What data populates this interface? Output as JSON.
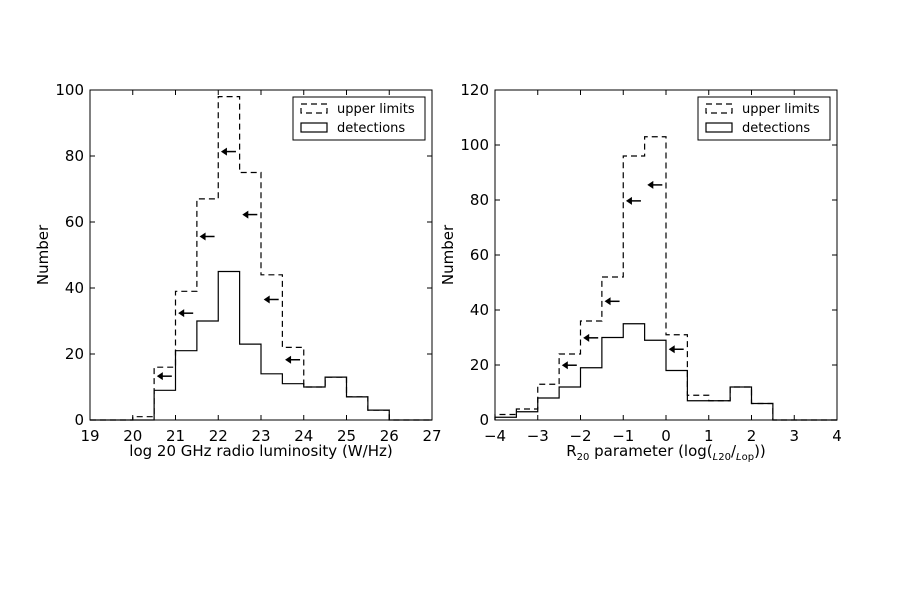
{
  "chart_data": [
    {
      "type": "histogram",
      "xlabel": "log 20 GHz radio luminosity (W/Hz)",
      "xlabel_parts": [],
      "ylabel": "Number",
      "xlim": [
        19,
        27
      ],
      "ylim": [
        0,
        100
      ],
      "xticks": [
        19,
        20,
        21,
        22,
        23,
        24,
        25,
        26,
        27
      ],
      "yticks": [
        0,
        20,
        40,
        60,
        80,
        100
      ],
      "grid": false,
      "legend_position": "top-right",
      "bins": [
        19.0,
        19.5,
        20.0,
        20.5,
        21.0,
        21.5,
        22.0,
        22.5,
        23.0,
        23.5,
        24.0,
        24.5,
        25.0,
        25.5,
        26.0,
        26.5,
        27.0
      ],
      "series": [
        {
          "name": "upper limits",
          "style": "dashed",
          "counts": [
            0,
            0,
            1,
            16,
            39,
            67,
            98,
            75,
            44,
            22,
            10,
            13,
            7,
            3,
            0,
            0
          ],
          "arrow_bins": [
            3,
            4,
            5,
            6,
            7,
            8,
            9
          ]
        },
        {
          "name": "detections",
          "style": "solid",
          "counts": [
            0,
            0,
            0,
            9,
            21,
            30,
            45,
            23,
            14,
            11,
            10,
            13,
            7,
            3,
            0,
            0
          ]
        }
      ]
    },
    {
      "type": "histogram",
      "xlabel": "",
      "xlabel_parts": [
        "R",
        "20",
        " parameter (log(",
        "L",
        "20",
        "/",
        "L",
        "op",
        "))"
      ],
      "ylabel": "Number",
      "xlim": [
        -4,
        4
      ],
      "ylim": [
        0,
        120
      ],
      "xticks": [
        -4,
        -3,
        -2,
        -1,
        0,
        1,
        2,
        3,
        4
      ],
      "xtick_labels": [
        "−4",
        "−3",
        "−2",
        "−1",
        "0",
        "1",
        "2",
        "3",
        "4"
      ],
      "yticks": [
        0,
        20,
        40,
        60,
        80,
        100,
        120
      ],
      "grid": false,
      "legend_position": "top-right",
      "bins": [
        -4.0,
        -3.5,
        -3.0,
        -2.5,
        -2.0,
        -1.5,
        -1.0,
        -0.5,
        0.0,
        0.5,
        1.0,
        1.5,
        2.0,
        2.5,
        3.0,
        3.5,
        4.0
      ],
      "series": [
        {
          "name": "upper limits",
          "style": "dashed",
          "counts": [
            2,
            4,
            13,
            24,
            36,
            52,
            96,
            103,
            31,
            9,
            7,
            12,
            6,
            0,
            0,
            0
          ],
          "arrow_bins": [
            3,
            4,
            5,
            6,
            7,
            8
          ]
        },
        {
          "name": "detections",
          "style": "solid",
          "counts": [
            1,
            3,
            8,
            12,
            19,
            30,
            35,
            29,
            18,
            7,
            7,
            12,
            6,
            0,
            0,
            0
          ]
        }
      ]
    }
  ]
}
